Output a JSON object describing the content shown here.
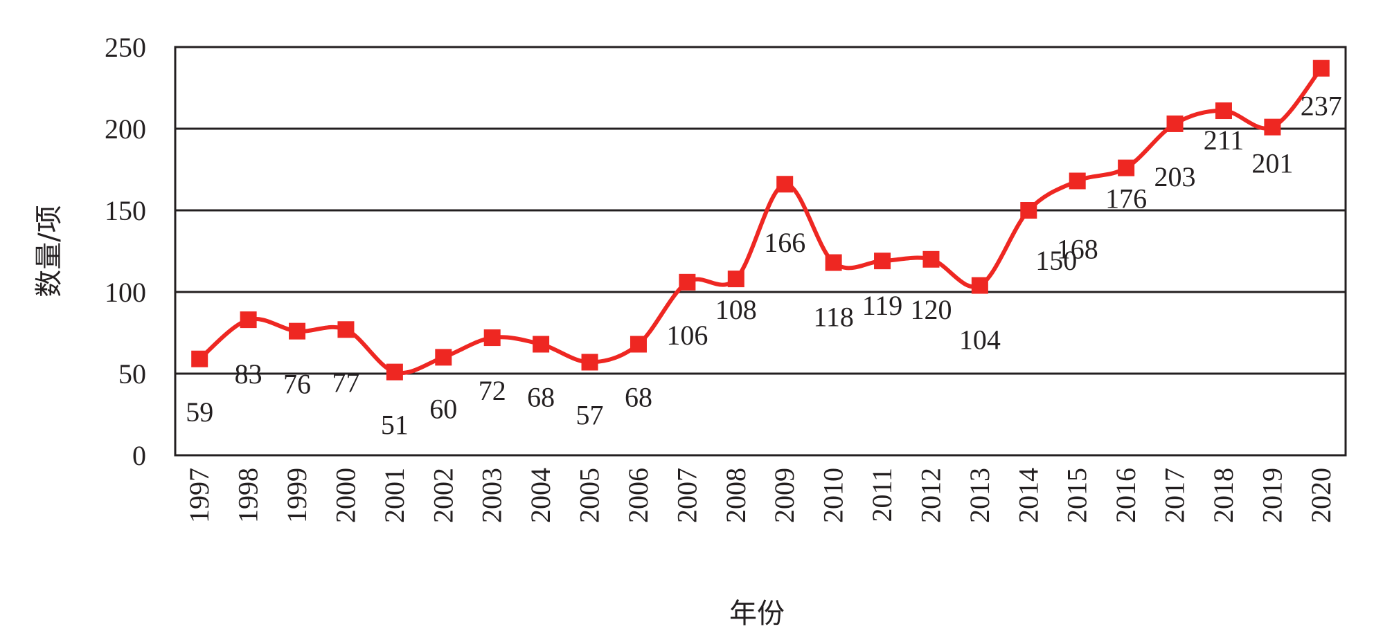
{
  "chart_data": {
    "type": "line",
    "x": [
      "1997",
      "1998",
      "1999",
      "2000",
      "2001",
      "2002",
      "2003",
      "2004",
      "2005",
      "2006",
      "2007",
      "2008",
      "2009",
      "2010",
      "2011",
      "2012",
      "2013",
      "2014",
      "2015",
      "2016",
      "2017",
      "2018",
      "2019",
      "2020"
    ],
    "series": [
      {
        "values": [
          59,
          83,
          76,
          77,
          51,
          60,
          72,
          68,
          57,
          68,
          106,
          108,
          166,
          118,
          119,
          120,
          104,
          150,
          168,
          176,
          203,
          211,
          201,
          237
        ],
        "color": "#ee2722",
        "marker": "square"
      }
    ],
    "data_labels": [
      "59",
      "83",
      "76",
      "77",
      "51",
      "60",
      "72",
      "68",
      "57",
      "68",
      "106",
      "108",
      "166",
      "118",
      "119",
      "120",
      "104",
      "150",
      "168",
      "176",
      "203",
      "211",
      "201",
      "237"
    ],
    "xlabel": "年份",
    "ylabel": "数量/项",
    "ylim": [
      0,
      250
    ],
    "yticks": [
      0,
      50,
      100,
      150,
      200,
      250
    ],
    "grid": "horizontal",
    "legend": "none"
  }
}
